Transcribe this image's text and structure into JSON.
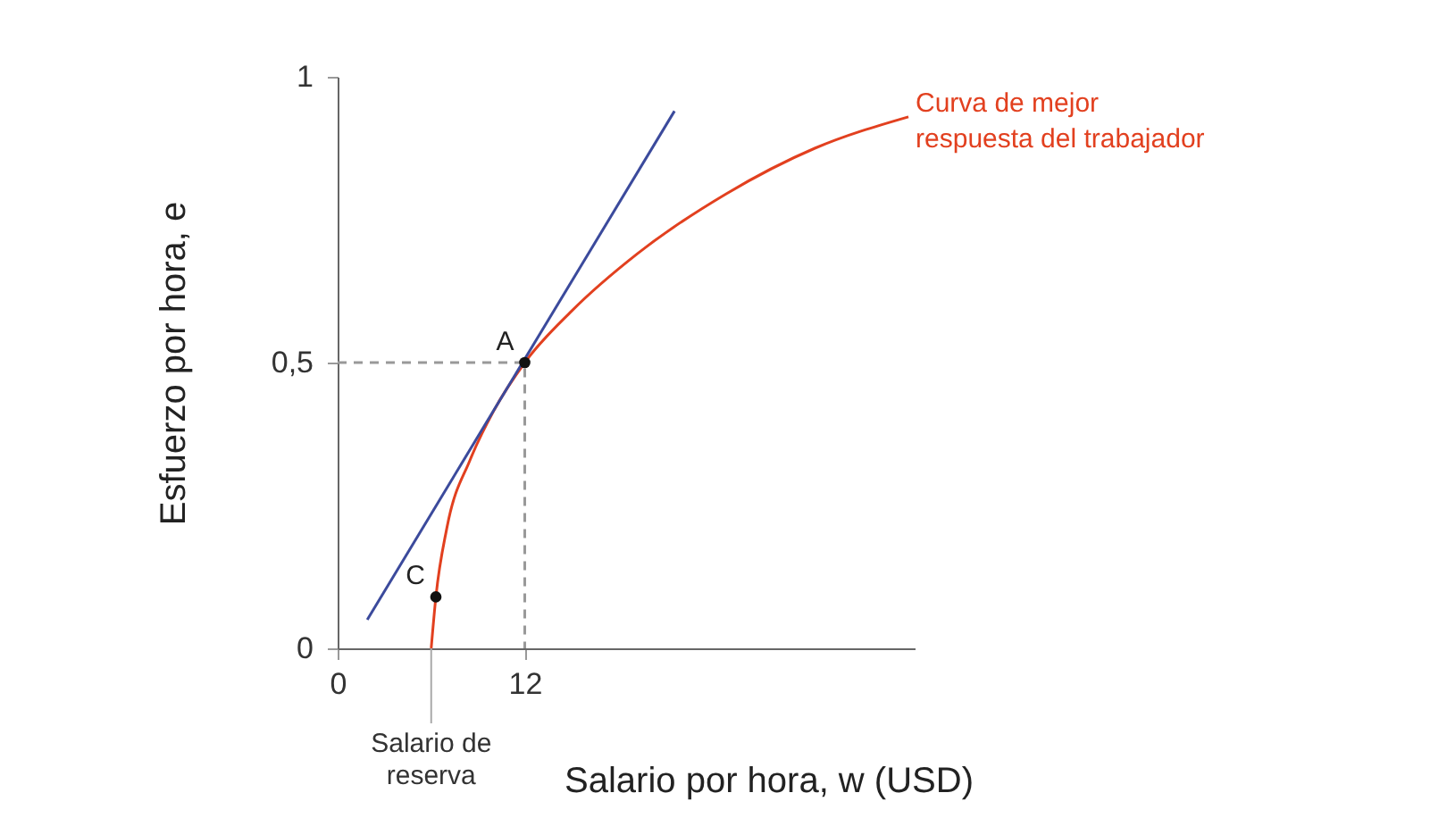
{
  "chart_data": {
    "type": "line",
    "xlabel": "Salario por hora, w (USD)",
    "ylabel": "Esfuerzo por hora, e",
    "xlim": [
      0,
      37
    ],
    "ylim": [
      0,
      1
    ],
    "xticks": [
      0,
      12
    ],
    "yticks": [
      0,
      {
        "value": 0.5,
        "label": "0,5"
      },
      1
    ],
    "grid": false,
    "series": [
      {
        "name": "Curva de mejor\nrespuesta del trabajador",
        "color": "#e2401f",
        "x": [
          6,
          6.3,
          7,
          8.5,
          10,
          12,
          15,
          19.2,
          24.9,
          30.6,
          36.6
        ],
        "values": [
          0,
          0.09,
          0.21,
          0.33,
          0.415,
          0.5,
          0.59,
          0.69,
          0.795,
          0.875,
          0.93
        ]
      },
      {
        "color": "#3b4a9c",
        "x": [
          1.9,
          21.6
        ],
        "values": [
          0.05,
          0.94
        ]
      },
      {
        "color": "#999999",
        "line_style": "dashed",
        "x": [
          0,
          12,
          12
        ],
        "values": [
          0.5,
          0.5,
          0
        ]
      },
      {
        "color": "#111111",
        "type": "scatter",
        "marker": "circle",
        "x": [
          6.3,
          12
        ],
        "values": [
          0.09,
          0.5
        ]
      }
    ],
    "annotations": [
      {
        "text": "A",
        "x": 12,
        "y": 0.5
      },
      {
        "text": "C",
        "x": 6.3,
        "y": 0.09
      },
      {
        "text": "Salario de\nreserva",
        "x": 6
      }
    ]
  }
}
